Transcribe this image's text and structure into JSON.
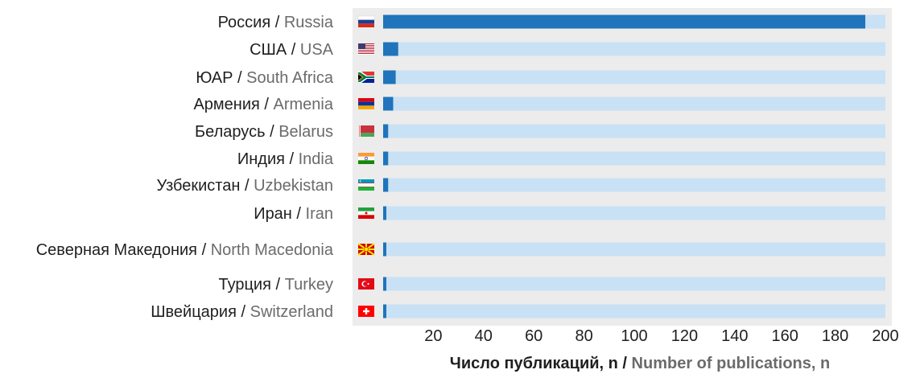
{
  "chart_data": {
    "type": "bar",
    "orientation": "horizontal",
    "xlabel_ru": "Число публикаций, n",
    "xlabel_sep": " / ",
    "xlabel_en": "Number of publications, n",
    "xlim": [
      0,
      200
    ],
    "xticks": [
      20,
      40,
      60,
      80,
      100,
      120,
      140,
      160,
      180,
      200
    ],
    "categories": [
      {
        "ru": "Россия",
        "en": "Russia",
        "flag": "russia-flag-icon",
        "value": 192
      },
      {
        "ru": "США",
        "en": "USA",
        "flag": "usa-flag-icon",
        "value": 6
      },
      {
        "ru": "ЮАР",
        "en": "South Africa",
        "flag": "south-africa-flag-icon",
        "value": 5
      },
      {
        "ru": "Армения",
        "en": "Armenia",
        "flag": "armenia-flag-icon",
        "value": 4
      },
      {
        "ru": "Беларусь",
        "en": "Belarus",
        "flag": "belarus-flag-icon",
        "value": 2
      },
      {
        "ru": "Индия",
        "en": "India",
        "flag": "india-flag-icon",
        "value": 2
      },
      {
        "ru": "Узбекистан",
        "en": "Uzbekistan",
        "flag": "uzbekistan-flag-icon",
        "value": 2
      },
      {
        "ru": "Иран",
        "en": "Iran",
        "flag": "iran-flag-icon",
        "value": 1
      },
      {
        "ru": "Северная Македония",
        "en": "North Macedonia",
        "flag": "north-macedonia-flag-icon",
        "value": 1
      },
      {
        "ru": "Турция",
        "en": "Turkey",
        "flag": "turkey-flag-icon",
        "value": 1
      },
      {
        "ru": "Швейцария",
        "en": "Switzerland",
        "flag": "switzerland-flag-icon",
        "value": 1
      }
    ],
    "label_separator": " / ",
    "colors": {
      "bar": "#1f74bb",
      "track": "#c9e1f4",
      "panel": "#ececec"
    }
  }
}
